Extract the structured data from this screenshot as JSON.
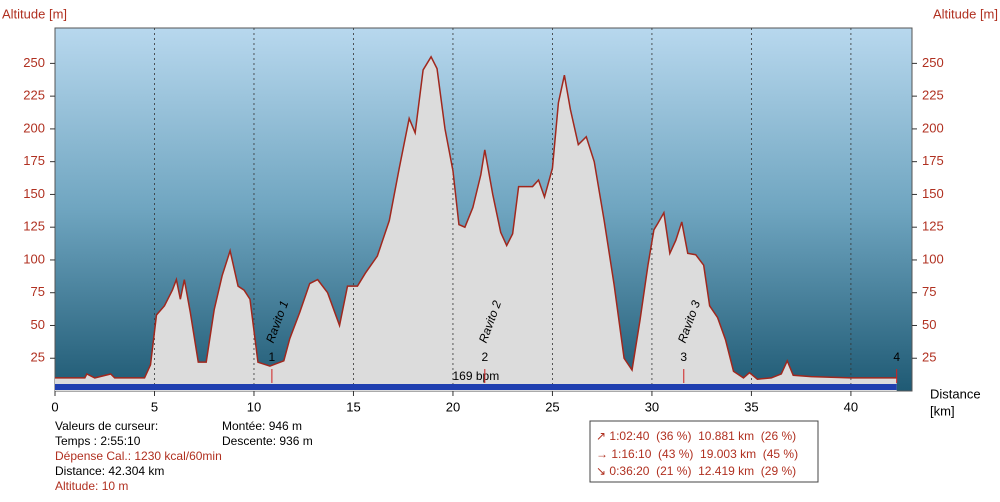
{
  "chart_data": {
    "type": "area",
    "ylabel": "Altitude [m]",
    "y2label": "Altitude [m]",
    "xlabel": "Distance",
    "xunit": "[km]",
    "x": [
      0,
      1.5,
      1.6,
      2,
      2.8,
      3,
      4.5,
      4.8,
      5.1,
      5.5,
      5.9,
      6.1,
      6.3,
      6.5,
      6.8,
      7.2,
      7.6,
      8.0,
      8.4,
      8.8,
      9.2,
      9.5,
      9.8,
      10.2,
      10.8,
      11.5,
      11.8,
      12.3,
      12.8,
      13.2,
      13.7,
      14.3,
      14.7,
      15.2,
      15.6,
      16.2,
      16.8,
      17.3,
      17.8,
      18.1,
      18.5,
      18.9,
      19.2,
      19.6,
      20.0,
      20.3,
      20.6,
      21.0,
      21.4,
      21.6,
      22.0,
      22.4,
      22.7,
      23.0,
      23.3,
      24.0,
      24.3,
      24.6,
      25.0,
      25.3,
      25.6,
      25.9,
      26.3,
      26.7,
      27.1,
      27.6,
      28.1,
      28.6,
      29.0,
      29.4,
      29.8,
      30.1,
      30.3,
      30.6,
      30.9,
      31.2,
      31.5,
      31.8,
      32.2,
      32.6,
      32.9,
      33.3,
      33.7,
      34.1,
      34.6,
      34.9,
      35.3,
      36.0,
      36.5,
      36.8,
      37.1,
      38,
      40,
      42,
      42.3
    ],
    "values": [
      10,
      10,
      13,
      10,
      13,
      10,
      10,
      20,
      58,
      65,
      77,
      85,
      70,
      85,
      60,
      22,
      22,
      62,
      88,
      107,
      80,
      77,
      70,
      22,
      19,
      23,
      40,
      60,
      82,
      85,
      75,
      50,
      80,
      80,
      90,
      103,
      130,
      170,
      208,
      197,
      245,
      255,
      246,
      200,
      168,
      127,
      125,
      140,
      165,
      184,
      150,
      121,
      111,
      120,
      156,
      156,
      161,
      148,
      170,
      220,
      241,
      215,
      188,
      194,
      175,
      130,
      81,
      25,
      16,
      54,
      96,
      123,
      128,
      136,
      105,
      115,
      129,
      105,
      104,
      96,
      65,
      56,
      39,
      15,
      10,
      14,
      9,
      10,
      13,
      23,
      12,
      11,
      10,
      10,
      10
    ],
    "color": "#a0281e",
    "fill": "#dcdcdc",
    "xlim": [
      0,
      43.07
    ],
    "ylim": [
      0,
      277
    ],
    "y2lim": [
      0,
      277
    ],
    "xticks": [
      0,
      5,
      10,
      15,
      20,
      25,
      30,
      35,
      40
    ],
    "yticks": [
      25,
      50,
      75,
      100,
      125,
      150,
      175,
      200,
      225,
      250
    ],
    "y2ticks": [
      25,
      50,
      75,
      100,
      125,
      150,
      175,
      200,
      225,
      250
    ],
    "grid": true,
    "markers": [
      {
        "x": 10.9,
        "label": "1",
        "name": "Ravito 1"
      },
      {
        "x": 21.6,
        "label": "2",
        "name": "Ravito 2"
      },
      {
        "x": 31.6,
        "label": "3",
        "name": "Ravito 3"
      },
      {
        "x": 42.3,
        "label": "4"
      }
    ],
    "heart_rate": "169 bpm"
  },
  "info": {
    "cursor_title": "Valeurs de curseur:",
    "time": "Temps : 2:55:10",
    "calories": "Dépense Cal.: 1230 kcal/60min",
    "distance": "Distance: 42.304 km",
    "altitude": "Altitude: 10 m",
    "ascent": "Montée: 946 m",
    "descent": "Descente: 936 m"
  },
  "stats": [
    "↗ 1:02:40  (36 %)  10.881 km  (26 %)",
    "→ 1:16:10  (43 %)  19.003 km  (45 %)",
    "↘ 0:36:20  (21 %)  12.419 km  (29 %)"
  ]
}
